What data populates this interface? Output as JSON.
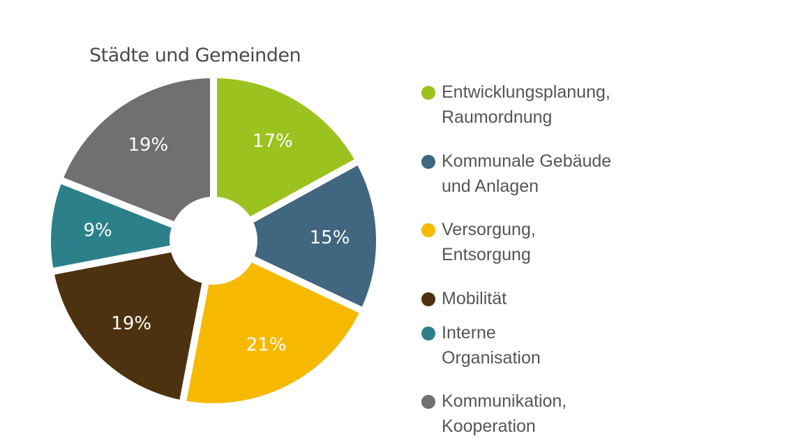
{
  "chart_data": {
    "type": "pie",
    "title": "Städte und Gemeinden",
    "donut": true,
    "start": "top, clockwise",
    "legend_position": "right",
    "slices": [
      {
        "label": [
          "Entwicklungsplanung,",
          "Raumordnung"
        ],
        "value": 17,
        "display": "17%",
        "color": "#9bc21f"
      },
      {
        "label": [
          "Kommunale Gebäude",
          "und Anlagen"
        ],
        "value": 15,
        "display": "15%",
        "color": "#41667f"
      },
      {
        "label": [
          "Versorgung,",
          "Entsorgung"
        ],
        "value": 21,
        "display": "21%",
        "color": "#f6b900"
      },
      {
        "label": [
          "Mobilität"
        ],
        "value": 19,
        "display": "19%",
        "color": "#4d3211"
      },
      {
        "label": [
          "Interne",
          "Organisation"
        ],
        "value": 9,
        "display": "9%",
        "color": "#2b8089"
      },
      {
        "label": [
          "Kommunikation,",
          "Kooperation"
        ],
        "value": 19,
        "display": "19%",
        "color": "#716f71"
      }
    ]
  }
}
